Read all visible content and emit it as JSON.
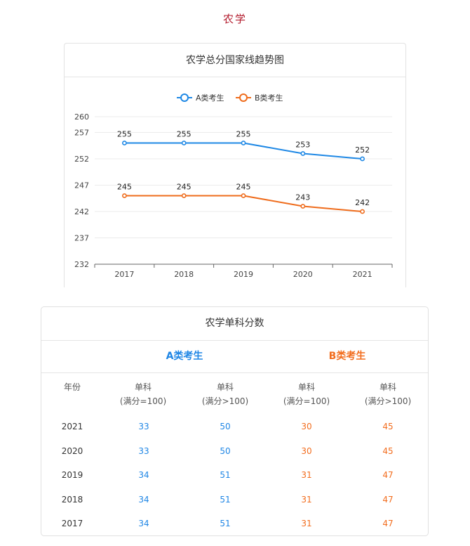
{
  "page": {
    "title": "农学"
  },
  "chart_data": {
    "type": "line",
    "title": "农学总分国家线趋势图",
    "categories": [
      "2017",
      "2018",
      "2019",
      "2020",
      "2021"
    ],
    "series": [
      {
        "name": "A类考生",
        "values": [
          255,
          255,
          255,
          253,
          252
        ],
        "color": "#1e88e5"
      },
      {
        "name": "B类考生",
        "values": [
          245,
          245,
          245,
          243,
          242
        ],
        "color": "#ef6c1c"
      }
    ],
    "yticks": [
      232,
      237,
      242,
      247,
      252,
      257,
      260
    ],
    "ylim": [
      232,
      260
    ],
    "xlabel": "",
    "ylabel": "",
    "legend_position": "top-center",
    "grid": true
  },
  "table": {
    "title": "农学单科分数",
    "group_a": "A类考生",
    "group_b": "B类考生",
    "year_header": "年份",
    "col_headers": [
      {
        "line1": "单科",
        "line2": "(满分=100)"
      },
      {
        "line1": "单科",
        "line2": "(满分>100)"
      },
      {
        "line1": "单科",
        "line2": "(满分=100)"
      },
      {
        "line1": "单科",
        "line2": "(满分>100)"
      }
    ],
    "rows": [
      {
        "year": "2021",
        "a1": "33",
        "a2": "50",
        "b1": "30",
        "b2": "45"
      },
      {
        "year": "2020",
        "a1": "33",
        "a2": "50",
        "b1": "30",
        "b2": "45"
      },
      {
        "year": "2019",
        "a1": "34",
        "a2": "51",
        "b1": "31",
        "b2": "47"
      },
      {
        "year": "2018",
        "a1": "34",
        "a2": "51",
        "b1": "31",
        "b2": "47"
      },
      {
        "year": "2017",
        "a1": "34",
        "a2": "51",
        "b1": "31",
        "b2": "47"
      }
    ]
  }
}
